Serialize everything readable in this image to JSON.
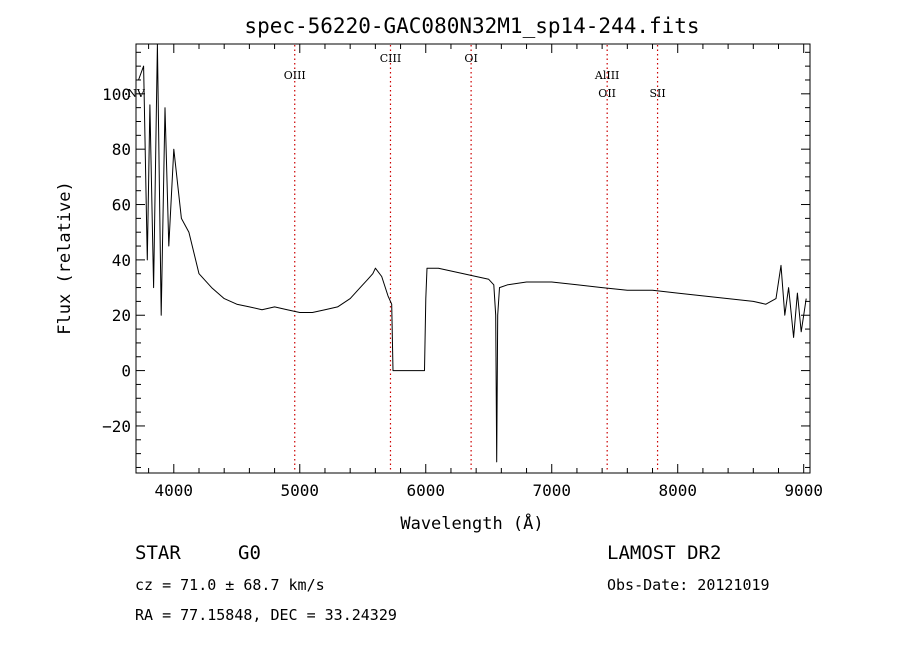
{
  "chart_data": {
    "type": "line",
    "title": "spec-56220-GAC080N32M1_sp14-244.fits",
    "xlabel": "Wavelength (Å)",
    "ylabel": "Flux (relative)",
    "xlim": [
      3700,
      9050
    ],
    "ylim": [
      -37,
      118
    ],
    "xticks": [
      4000,
      5000,
      6000,
      7000,
      8000,
      9000
    ],
    "yticks": [
      -20,
      0,
      20,
      40,
      60,
      80,
      100
    ],
    "grid": false,
    "line_color": "#000000",
    "spectral_lines": [
      {
        "label": "NV",
        "x": 3700,
        "row": "low",
        "color": "#000000",
        "show_line": false
      },
      {
        "label": "OIII",
        "x": 4960,
        "row": "mid",
        "color": "#cc0000",
        "show_line": true
      },
      {
        "label": "CIII",
        "x": 5720,
        "row": "top",
        "color": "#cc0000",
        "show_line": true
      },
      {
        "label": "OI",
        "x": 6360,
        "row": "top",
        "color": "#cc0000",
        "show_line": true
      },
      {
        "label": "AlIII",
        "x": 7440,
        "row": "mid",
        "color": "#cc0000",
        "show_line": true
      },
      {
        "label": "OII",
        "x": 7440,
        "row": "low",
        "color": "#cc0000",
        "show_line": false
      },
      {
        "label": "SII",
        "x": 7840,
        "row": "low",
        "color": "#cc0000",
        "show_line": true
      }
    ],
    "series": [
      {
        "x": [
          3720,
          3760,
          3790,
          3810,
          3840,
          3870,
          3900,
          3930,
          3960,
          4000,
          4060,
          4120,
          4200,
          4300,
          4400,
          4500,
          4600,
          4700,
          4800,
          4900,
          5000,
          5100,
          5200,
          5300,
          5400,
          5480,
          5540,
          5580,
          5600,
          5650,
          5700,
          5730,
          5740,
          5990,
          6000,
          6010,
          6100,
          6200,
          6300,
          6400,
          6500,
          6540,
          6555,
          6563,
          6571,
          6585,
          6650,
          6800,
          7000,
          7200,
          7400,
          7600,
          7800,
          8000,
          8200,
          8400,
          8600,
          8700,
          8780,
          8820,
          8850,
          8880,
          8920,
          8950,
          8980,
          9020
        ],
        "y": [
          105,
          110,
          40,
          96,
          30,
          118,
          20,
          95,
          45,
          80,
          55,
          50,
          35,
          30,
          26,
          24,
          23,
          22,
          23,
          22,
          21,
          21,
          22,
          23,
          26,
          30,
          33,
          35,
          37,
          34,
          27,
          24,
          0,
          0,
          26,
          37,
          37,
          36,
          35,
          34,
          33,
          31,
          20,
          -33,
          20,
          30,
          31,
          32,
          32,
          31,
          30,
          29,
          29,
          28,
          27,
          26,
          25,
          24,
          26,
          38,
          20,
          30,
          12,
          28,
          14,
          26
        ]
      }
    ]
  },
  "info": {
    "object_class": "STAR",
    "subclass": "G0",
    "survey": "LAMOST DR2",
    "redshift_line": "cz = 71.0 ± 68.7 km/s",
    "obs_date_line": "Obs-Date: 20121019",
    "coords_line": "RA =  77.15848, DEC =  33.24329"
  }
}
